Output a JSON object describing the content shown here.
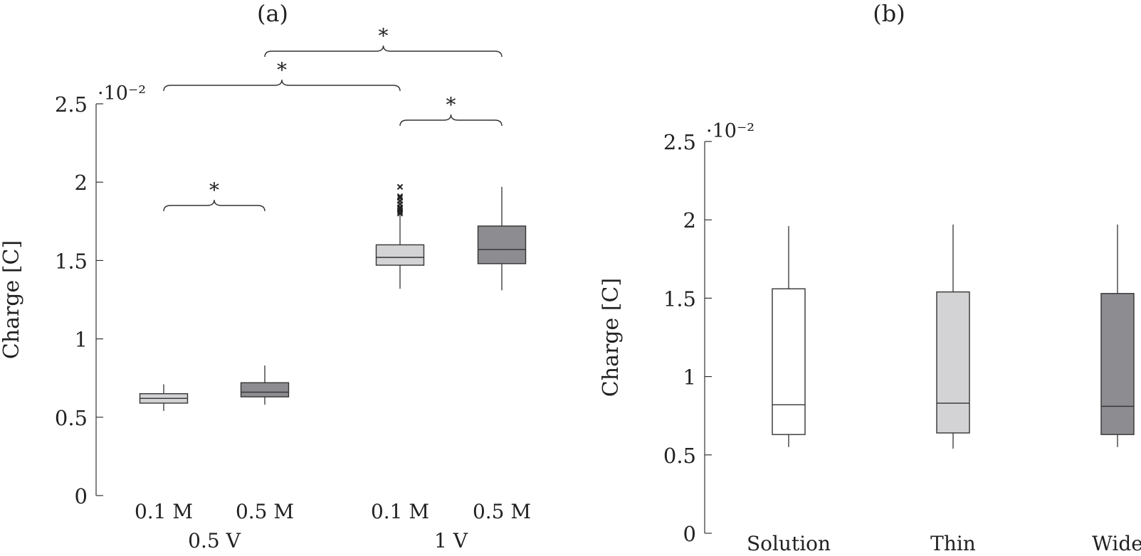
{
  "chart_data": [
    {
      "type": "box",
      "panel_label": "(a)",
      "ylabel": "Charge [C]",
      "y_scale_label": "·10⁻²",
      "ylim": [
        0,
        2.5
      ],
      "yticks": [
        "0",
        "0.5",
        "1",
        "1.5",
        "2",
        "2.5"
      ],
      "ytick_values": [
        0,
        0.5,
        1,
        1.5,
        2,
        2.5
      ],
      "groups": [
        "0.5 V",
        "1 V"
      ],
      "categories": [
        "0.1 M",
        "0.5 M",
        "0.1 M",
        "0.5 M"
      ],
      "boxes": [
        {
          "category": "0.1 M",
          "group": "0.5 V",
          "whisker_low": 0.54,
          "q1": 0.59,
          "median": 0.62,
          "q3": 0.65,
          "whisker_high": 0.71,
          "color": "#d3d3d5",
          "outliers": []
        },
        {
          "category": "0.5 M",
          "group": "0.5 V",
          "whisker_low": 0.58,
          "q1": 0.63,
          "median": 0.66,
          "q3": 0.72,
          "whisker_high": 0.83,
          "color": "#8c8c91",
          "outliers": []
        },
        {
          "category": "0.1 M",
          "group": "1 V",
          "whisker_low": 1.32,
          "q1": 1.47,
          "median": 1.52,
          "q3": 1.6,
          "whisker_high": 1.79,
          "color": "#d3d3d5",
          "outliers": [
            1.8,
            1.81,
            1.82,
            1.83,
            1.84,
            1.86,
            1.88,
            1.9,
            1.91,
            1.97
          ]
        },
        {
          "category": "0.5 M",
          "group": "1 V",
          "whisker_low": 1.31,
          "q1": 1.48,
          "median": 1.57,
          "q3": 1.72,
          "whisker_high": 1.97,
          "color": "#8c8c91",
          "outliers": []
        }
      ],
      "significance": [
        {
          "from": 0,
          "to": 1,
          "label": "*"
        },
        {
          "from": 2,
          "to": 3,
          "label": "*"
        },
        {
          "from": 0,
          "to": 2,
          "label": "*"
        },
        {
          "from": 1,
          "to": 3,
          "label": "*"
        }
      ]
    },
    {
      "type": "box",
      "panel_label": "(b)",
      "ylabel": "Charge [C]",
      "y_scale_label": "·10⁻²",
      "ylim": [
        0,
        2.5
      ],
      "yticks": [
        "0",
        "0.5",
        "1",
        "1.5",
        "2",
        "2.5"
      ],
      "ytick_values": [
        0,
        0.5,
        1,
        1.5,
        2,
        2.5
      ],
      "categories": [
        "Solution",
        "Thin",
        "Wide"
      ],
      "boxes": [
        {
          "category": "Solution",
          "whisker_low": 0.55,
          "q1": 0.63,
          "median": 0.82,
          "q3": 1.56,
          "whisker_high": 1.96,
          "color": "#ffffff",
          "outliers": []
        },
        {
          "category": "Thin",
          "whisker_low": 0.54,
          "q1": 0.64,
          "median": 0.83,
          "q3": 1.54,
          "whisker_high": 1.97,
          "color": "#d3d3d5",
          "outliers": []
        },
        {
          "category": "Wide",
          "whisker_low": 0.55,
          "q1": 0.63,
          "median": 0.81,
          "q3": 1.53,
          "whisker_high": 1.97,
          "color": "#8c8c91",
          "outliers": []
        }
      ]
    }
  ]
}
